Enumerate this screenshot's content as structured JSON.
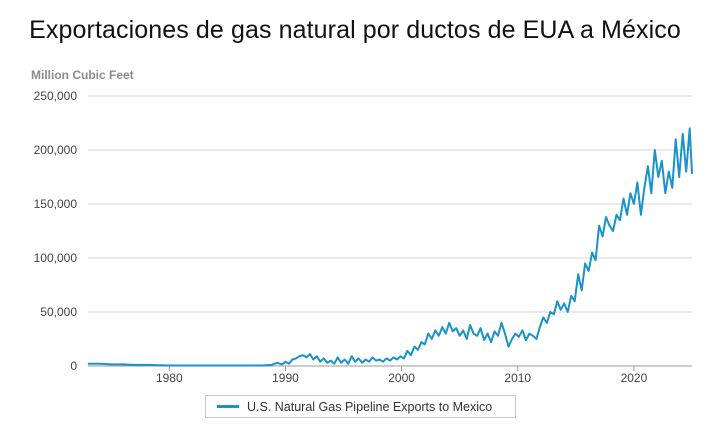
{
  "page": {
    "title": "Exportaciones de gas natural por ductos de EUA a México"
  },
  "chart_data": {
    "type": "line",
    "title": "Exportaciones de gas natural por ductos de EUA a México",
    "ylabel": "Million Cubic Feet",
    "xlabel": "",
    "ylim": [
      0,
      250000
    ],
    "xlim": [
      1973,
      2025
    ],
    "yticks": [
      0,
      50000,
      100000,
      150000,
      200000,
      250000
    ],
    "ytick_labels": [
      "0",
      "50,000",
      "100,000",
      "150,000",
      "200,000",
      "250,000"
    ],
    "xticks": [
      1980,
      1990,
      2000,
      2010,
      2020
    ],
    "xtick_labels": [
      "1980",
      "1990",
      "2000",
      "2010",
      "2020"
    ],
    "grid": true,
    "legend_position": "bottom-center",
    "series": [
      {
        "name": "U.S. Natural Gas Pipeline Exports to Mexico",
        "color": "#1a93c8",
        "x": [
          1973.0,
          1974.0,
          1975.0,
          1976.0,
          1977.0,
          1978.0,
          1980.0,
          1983.0,
          1986.0,
          1988.0,
          1988.8,
          1989.3,
          1989.7,
          1990.0,
          1990.3,
          1990.6,
          1990.9,
          1991.2,
          1991.5,
          1991.8,
          1992.1,
          1992.4,
          1992.7,
          1993.0,
          1993.3,
          1993.6,
          1993.9,
          1994.2,
          1994.5,
          1994.8,
          1995.1,
          1995.4,
          1995.7,
          1996.0,
          1996.3,
          1996.6,
          1996.9,
          1997.2,
          1997.5,
          1997.8,
          1998.1,
          1998.4,
          1998.7,
          1999.0,
          1999.3,
          1999.6,
          1999.9,
          2000.2,
          2000.5,
          2000.8,
          2001.1,
          2001.4,
          2001.7,
          2002.0,
          2002.3,
          2002.6,
          2002.9,
          2003.2,
          2003.5,
          2003.8,
          2004.1,
          2004.4,
          2004.7,
          2005.0,
          2005.3,
          2005.6,
          2005.9,
          2006.2,
          2006.5,
          2006.8,
          2007.1,
          2007.4,
          2007.7,
          2008.0,
          2008.3,
          2008.6,
          2008.9,
          2009.2,
          2009.5,
          2009.8,
          2010.1,
          2010.4,
          2010.7,
          2011.0,
          2011.3,
          2011.6,
          2011.9,
          2012.2,
          2012.5,
          2012.8,
          2013.1,
          2013.4,
          2013.7,
          2014.0,
          2014.3,
          2014.6,
          2014.9,
          2015.2,
          2015.5,
          2015.8,
          2016.1,
          2016.4,
          2016.7,
          2017.0,
          2017.3,
          2017.6,
          2017.9,
          2018.2,
          2018.5,
          2018.8,
          2019.1,
          2019.4,
          2019.7,
          2020.0,
          2020.3,
          2020.6,
          2020.9,
          2021.2,
          2021.5,
          2021.8,
          2022.1,
          2022.4,
          2022.7,
          2023.0,
          2023.3,
          2023.6,
          2023.9,
          2024.2,
          2024.5,
          2024.8,
          2025.0
        ],
        "values": [
          2000,
          2000,
          1500,
          1500,
          1000,
          1000,
          500,
          500,
          500,
          500,
          1000,
          3000,
          1500,
          4000,
          2000,
          6000,
          7000,
          9000,
          10000,
          8000,
          11000,
          6000,
          9000,
          4000,
          7000,
          3000,
          5000,
          2000,
          8000,
          3000,
          6000,
          2000,
          9000,
          4000,
          7000,
          3000,
          6000,
          4000,
          8000,
          5000,
          6000,
          4000,
          7000,
          5000,
          8000,
          6000,
          9000,
          7000,
          14000,
          10000,
          18000,
          15000,
          22000,
          20000,
          30000,
          25000,
          33000,
          28000,
          36000,
          30000,
          40000,
          32000,
          35000,
          28000,
          33000,
          25000,
          38000,
          30000,
          28000,
          35000,
          24000,
          30000,
          22000,
          32000,
          28000,
          40000,
          30000,
          18000,
          25000,
          30000,
          27000,
          33000,
          24000,
          30000,
          28000,
          25000,
          36000,
          45000,
          40000,
          50000,
          48000,
          60000,
          52000,
          58000,
          50000,
          65000,
          60000,
          85000,
          70000,
          95000,
          88000,
          105000,
          98000,
          130000,
          120000,
          138000,
          130000,
          125000,
          140000,
          135000,
          155000,
          140000,
          160000,
          150000,
          170000,
          140000,
          165000,
          185000,
          160000,
          200000,
          175000,
          190000,
          160000,
          180000,
          165000,
          210000,
          175000,
          215000,
          180000,
          220000,
          178000
        ]
      }
    ]
  }
}
